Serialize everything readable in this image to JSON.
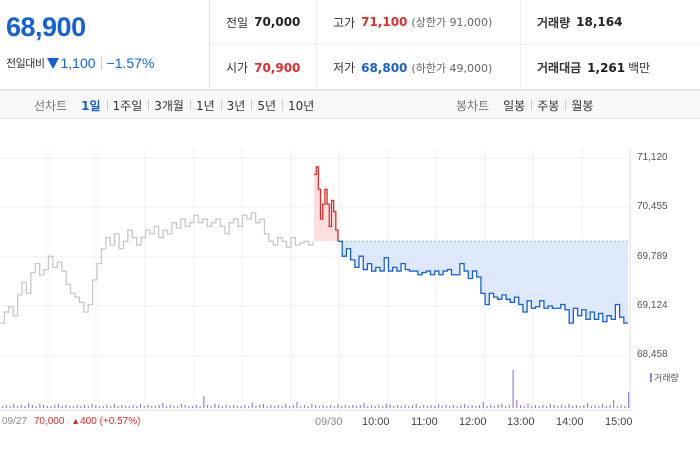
{
  "price": {
    "current": "68,900",
    "change_label": "전일대비",
    "change_value": "1,100",
    "change_pct": "−1.57%"
  },
  "stats": {
    "prev_close": {
      "label": "전일",
      "value": "70,000"
    },
    "high": {
      "label": "고가",
      "value": "71,100",
      "sub": "(상한가 91,000)"
    },
    "volume": {
      "label": "거래량",
      "value": "18,164"
    },
    "open": {
      "label": "시가",
      "value": "70,900"
    },
    "low": {
      "label": "저가",
      "value": "68,800",
      "sub": "(하한가 49,000)"
    },
    "trade_value": {
      "label": "거래대금",
      "value": "1,261",
      "unit": "백만"
    }
  },
  "toolbar": {
    "line_title": "선차트",
    "line_periods": [
      "1일",
      "1주일",
      "3개월",
      "1년",
      "3년",
      "5년",
      "10년"
    ],
    "active_period": "1일",
    "candle_title": "봉차트",
    "candle_periods": [
      "일봉",
      "주봉",
      "월봉"
    ]
  },
  "colors": {
    "up": "#e22a2a",
    "down": "#1560d8",
    "prev_day_line": "#c8c8c8",
    "down_fill": "#dde9fb",
    "volume": "#9b7dd4"
  },
  "chart_data": {
    "type": "line",
    "y_ticks": [
      "71,120",
      "70,455",
      "69,789",
      "69,124",
      "68,458"
    ],
    "ylim": [
      68458,
      71120
    ],
    "x_ticks": [
      "09/30",
      "10:00",
      "11:00",
      "12:00",
      "13:00",
      "14:00",
      "15:00"
    ],
    "prev_day_label": "09/27",
    "prev_day_close": "70,000",
    "prev_day_change": "400",
    "prev_day_change_pct": "(+0.57%)",
    "reference_price": 70000,
    "volume_legend": "거래량",
    "series": [
      {
        "values": [
          68900,
          69050,
          69120,
          69000,
          69280,
          69450,
          69300,
          69580,
          69700,
          69550,
          69620,
          69800,
          69650,
          69720,
          69600,
          69420,
          69300,
          69250,
          69180,
          69050,
          69150,
          69480,
          69700,
          69900,
          70050,
          69950,
          70100,
          69900,
          70000,
          70150,
          70050,
          69950,
          70050,
          70150,
          70100,
          70200,
          70050,
          70150,
          70100,
          70250,
          70180,
          70300,
          70200,
          70250,
          70350,
          70250,
          70300,
          70200,
          70250,
          70300,
          70200,
          70100,
          70250,
          70300,
          70200,
          70350,
          70300,
          70380,
          70250,
          70300,
          70100,
          70000,
          69950,
          70050,
          70000,
          69920,
          70050,
          69950,
          69980,
          70000,
          69950,
          70000
        ]
      },
      {
        "values": [
          70900,
          71000,
          70700,
          70300,
          70500,
          70700,
          70500,
          70200,
          70550,
          70400,
          70150,
          70000
        ]
      },
      {
        "values": [
          70000,
          69800,
          69900,
          69750,
          69650,
          69800,
          69620,
          69700,
          69600,
          69650,
          69600,
          69780,
          69600,
          69650,
          69600,
          69700,
          69620,
          69600,
          69600,
          69550,
          69580,
          69600,
          69550,
          69600,
          69550,
          69600,
          69620,
          69550,
          69550,
          69700,
          69600,
          69500,
          69600,
          69520,
          69300,
          69150,
          69300,
          69250,
          69220,
          69280,
          69220,
          69180,
          69250,
          69150,
          69050,
          69200,
          69100,
          69120,
          69200,
          69100,
          69130,
          69100,
          69100,
          69150,
          69080,
          68900,
          69100,
          69000,
          69080,
          68950,
          69050,
          68950,
          69030,
          68920,
          69000,
          68950,
          69150,
          68980,
          68900,
          68900
        ]
      }
    ],
    "volume": [
      2,
      3,
      2,
      4,
      2,
      3,
      2,
      5,
      3,
      2,
      4,
      3,
      2,
      2,
      3,
      4,
      2,
      3,
      2,
      2,
      3,
      2,
      3,
      2,
      4,
      3,
      2,
      2,
      3,
      2,
      4,
      2,
      3,
      2,
      2,
      3,
      2,
      4,
      2,
      3,
      2,
      2,
      3,
      5,
      2,
      3,
      2,
      2,
      4,
      3,
      2,
      2,
      3,
      2,
      12,
      3,
      2,
      4,
      3,
      2,
      3,
      2,
      3,
      2,
      2,
      3,
      2,
      5,
      2,
      3,
      4,
      2,
      3,
      2,
      3,
      2,
      4,
      2,
      3,
      6,
      2,
      3,
      2,
      4,
      3,
      2,
      3,
      2,
      3,
      2,
      4,
      2,
      3,
      2,
      3,
      2,
      3,
      5,
      2,
      3,
      2,
      3,
      2,
      4,
      3,
      2,
      3,
      2,
      3,
      2,
      3,
      4,
      2,
      3,
      2,
      3,
      2,
      4,
      2,
      3,
      2,
      3,
      2,
      3,
      4,
      2,
      3,
      2,
      3,
      6,
      2,
      3,
      2,
      3,
      4,
      2,
      3,
      38,
      8,
      3,
      2,
      4,
      2,
      3,
      2,
      3,
      2,
      4,
      3,
      2,
      3,
      2,
      4,
      2,
      3,
      2,
      3,
      5,
      2,
      3,
      2,
      4,
      2,
      3,
      8,
      2,
      3,
      2,
      16
    ]
  }
}
